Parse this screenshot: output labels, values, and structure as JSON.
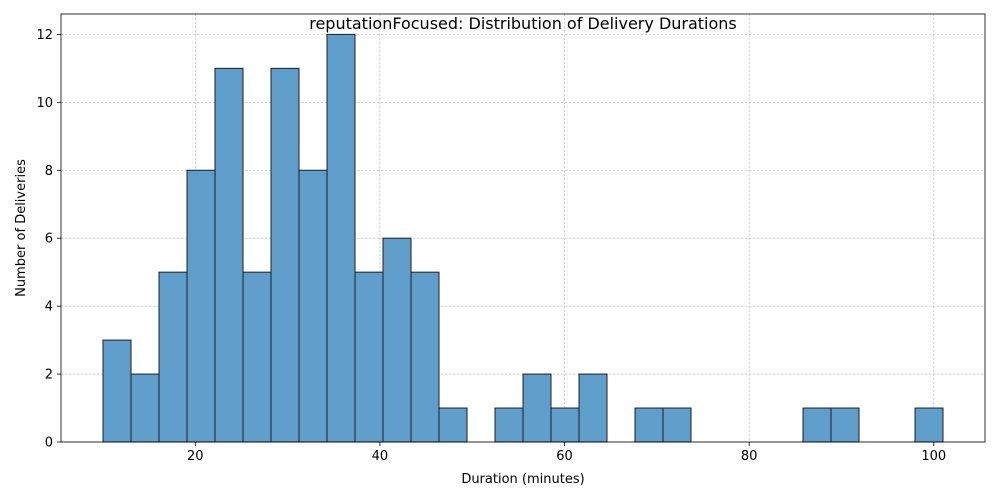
{
  "chart_data": {
    "type": "bar",
    "title": "reputationFocused: Distribution of Delivery Durations",
    "xlabel": "Duration (minutes)",
    "ylabel": "Number of Deliveries",
    "xlim": [
      5.45,
      105.55
    ],
    "ylim": [
      0,
      12.6
    ],
    "xticks": [
      20,
      40,
      60,
      80,
      100
    ],
    "yticks": [
      0,
      2,
      4,
      6,
      8,
      10,
      12
    ],
    "grid": true,
    "bin_edges": [
      10.0,
      13.033,
      16.067,
      19.1,
      22.133,
      25.167,
      28.2,
      31.233,
      34.267,
      37.3,
      40.333,
      43.367,
      46.4,
      49.433,
      52.467,
      55.5,
      58.533,
      61.567,
      64.6,
      67.633,
      70.667,
      73.7,
      76.733,
      79.767,
      82.8,
      85.833,
      88.867,
      91.9,
      94.933,
      97.967,
      101.0
    ],
    "counts": [
      3,
      2,
      5,
      8,
      11,
      5,
      11,
      8,
      12,
      5,
      6,
      5,
      1,
      0,
      1,
      2,
      1,
      2,
      0,
      1,
      1,
      0,
      0,
      0,
      0,
      1,
      1,
      0,
      0,
      1
    ],
    "bar_color": "#5f9ecb",
    "edge_color": "#1f1f1f"
  }
}
